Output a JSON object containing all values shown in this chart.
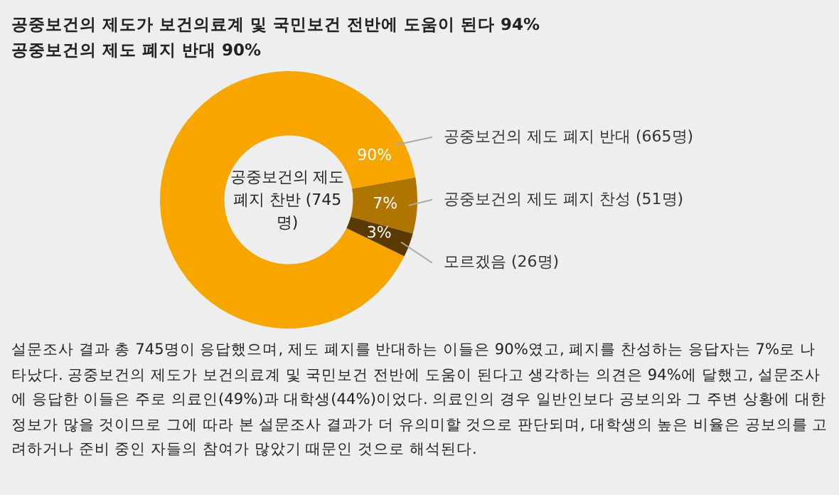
{
  "chart_data": {
    "type": "donut",
    "title": "공중보건의 제도가 보건의료계 및 국민보건 전반에 도움이 된다  94%",
    "subtitle": "공중보건의 제도 폐지 반대  90%",
    "categories": [
      "공중보건의 제도 폐지 반대 (665명)",
      "공중보건의 제도 폐지 찬성 (51명)",
      "모르겠음 (26명)"
    ],
    "values": [
      90,
      7,
      3
    ],
    "colors": [
      "#f7a600",
      "#b07400",
      "#5a3a00"
    ],
    "value_labels": [
      "90%",
      "7%",
      "3%"
    ],
    "legend": false,
    "annotations": [
      "공중보건의 제도 폐지 찬반 (745명)",
      "설문조사 결과 총 745명이 응답했으며, 제도 폐지를 반대하는 이들은 90%였고, 폐지를 찬성하는 응답자는 7%로 나타났다. 공중보건의 제도가 보건의료계 및 국민보건 전반에 도움이 된다고 생각하는 의견은 94%에 달했고, 설문조사에 응답한 이들은 주로 의료인(49%)과 대학생(44%)이었다. 의료인의 경우 일반인보다 공보의와 그 주변 상황에 대한 정보가 많을 것이므로 그에 따라 본 설문조사 결과가 더 유의미할 것으로 판단되며, 대학생의 높은 비율은 공보의를 고려하거나 준비 중인 자들의 참여가 많았기 때문인 것으로 해석된다."
    ]
  }
}
